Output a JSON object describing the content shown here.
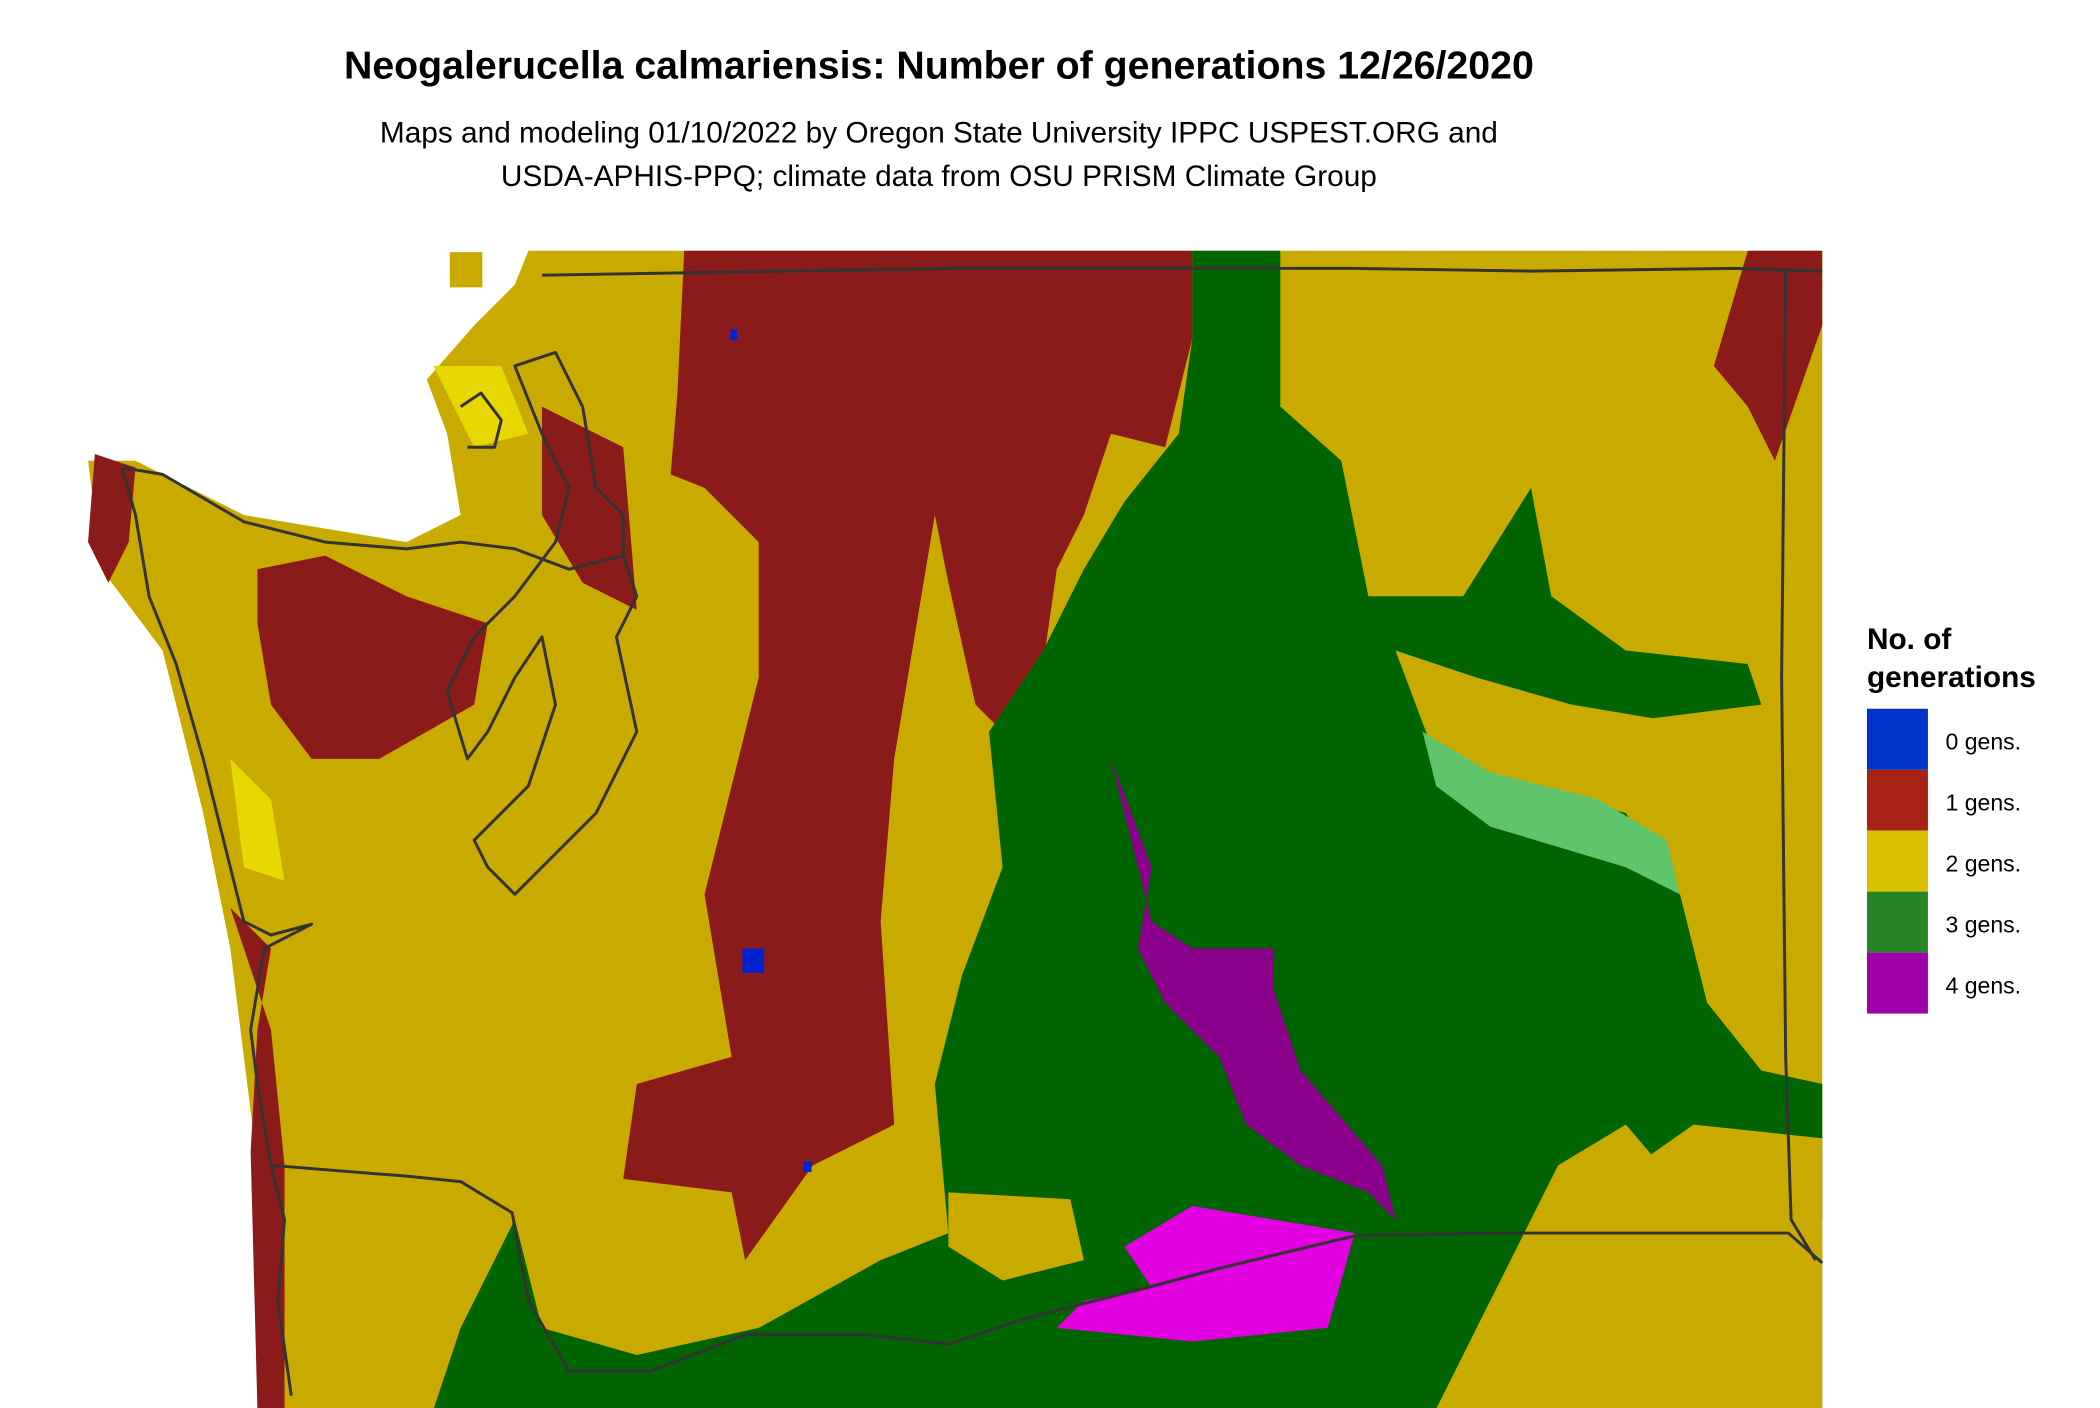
{
  "title": "Neogalerucella calmariensis: Number of generations 12/26/2020",
  "subtitle_line1": "Maps and modeling 01/10/2022 by Oregon State University IPPC USPEST.ORG and",
  "subtitle_line2": "USDA-APHIS-PPQ; climate data from OSU PRISM Climate Group",
  "legend": {
    "title_line1": "No. of",
    "title_line2": "generations",
    "items": [
      {
        "label": "0 gens.",
        "color": "#0033cc"
      },
      {
        "label": "1 gens.",
        "color": "#a52214"
      },
      {
        "label": "2 gens.",
        "color": "#d9c000"
      },
      {
        "label": "3 gens.",
        "color": "#268526"
      },
      {
        "label": "4 gens.",
        "color": "#a000a8"
      }
    ]
  },
  "map_colors": {
    "gen0": "#0022cc",
    "gen1": "#8b1a1a",
    "gen2": "#c9ab00",
    "gen2_bright": "#e6d800",
    "gen3": "#006400",
    "gen3_light": "#5fc46a",
    "gen4": "#8b008b",
    "gen4_bright": "#e000e0",
    "border": "#333333"
  }
}
